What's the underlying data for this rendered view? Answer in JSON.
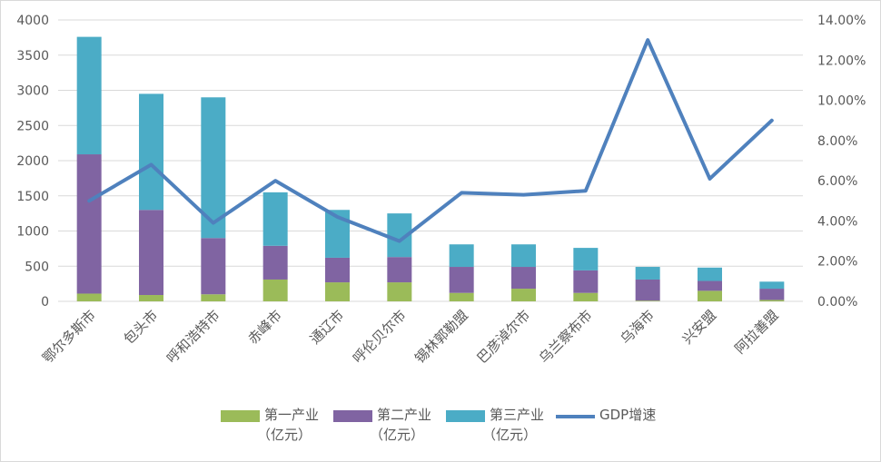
{
  "chart_data": {
    "type": "bar",
    "categories": [
      "鄂尔多斯市",
      "包头市",
      "呼和浩特市",
      "赤峰市",
      "通辽市",
      "呼伦贝尔市",
      "锡林郭勒盟",
      "巴彦淖尔市",
      "乌兰察布市",
      "乌海市",
      "兴安盟",
      "阿拉善盟"
    ],
    "stacked": true,
    "series": [
      {
        "name": "第一产业（亿元）",
        "color": "#9BBB59",
        "axis": "left",
        "values": [
          110,
          90,
          100,
          310,
          270,
          270,
          120,
          180,
          120,
          10,
          150,
          20
        ]
      },
      {
        "name": "第二产业（亿元）",
        "color": "#8064A2",
        "axis": "left",
        "values": [
          1980,
          1210,
          800,
          480,
          350,
          360,
          370,
          310,
          320,
          300,
          140,
          160
        ]
      },
      {
        "name": "第三产业（亿元）",
        "color": "#4BACC6",
        "axis": "left",
        "values": [
          1670,
          1650,
          2000,
          760,
          680,
          620,
          320,
          320,
          320,
          180,
          190,
          100
        ]
      },
      {
        "name": "GDP增速",
        "color": "#4F81BD",
        "axis": "right",
        "type": "line",
        "values": [
          0.05,
          0.068,
          0.039,
          0.06,
          0.042,
          0.03,
          0.054,
          0.053,
          0.055,
          0.13,
          0.061,
          0.09
        ]
      }
    ],
    "y_left": {
      "min": 0,
      "max": 4000,
      "step": 500,
      "ticks": [
        "0",
        "500",
        "1000",
        "1500",
        "2000",
        "2500",
        "3000",
        "3500",
        "4000"
      ]
    },
    "y_right": {
      "min": 0,
      "max": 0.14,
      "step": 0.02,
      "ticks": [
        "0.00%",
        "2.00%",
        "4.00%",
        "6.00%",
        "8.00%",
        "10.00%",
        "12.00%",
        "14.00%"
      ]
    },
    "grid": true,
    "legend_position": "bottom",
    "title": "",
    "xlabel": "",
    "ylabel": ""
  },
  "legend": [
    {
      "line1": "第一产业",
      "line2": "（亿元）",
      "color": "#9BBB59",
      "kind": "swatch"
    },
    {
      "line1": "第二产业",
      "line2": "（亿元）",
      "color": "#8064A2",
      "kind": "swatch"
    },
    {
      "line1": "第三产业",
      "line2": "（亿元）",
      "color": "#4BACC6",
      "kind": "swatch"
    },
    {
      "line1": "GDP增速",
      "line2": "",
      "color": "#4F81BD",
      "kind": "line"
    }
  ]
}
